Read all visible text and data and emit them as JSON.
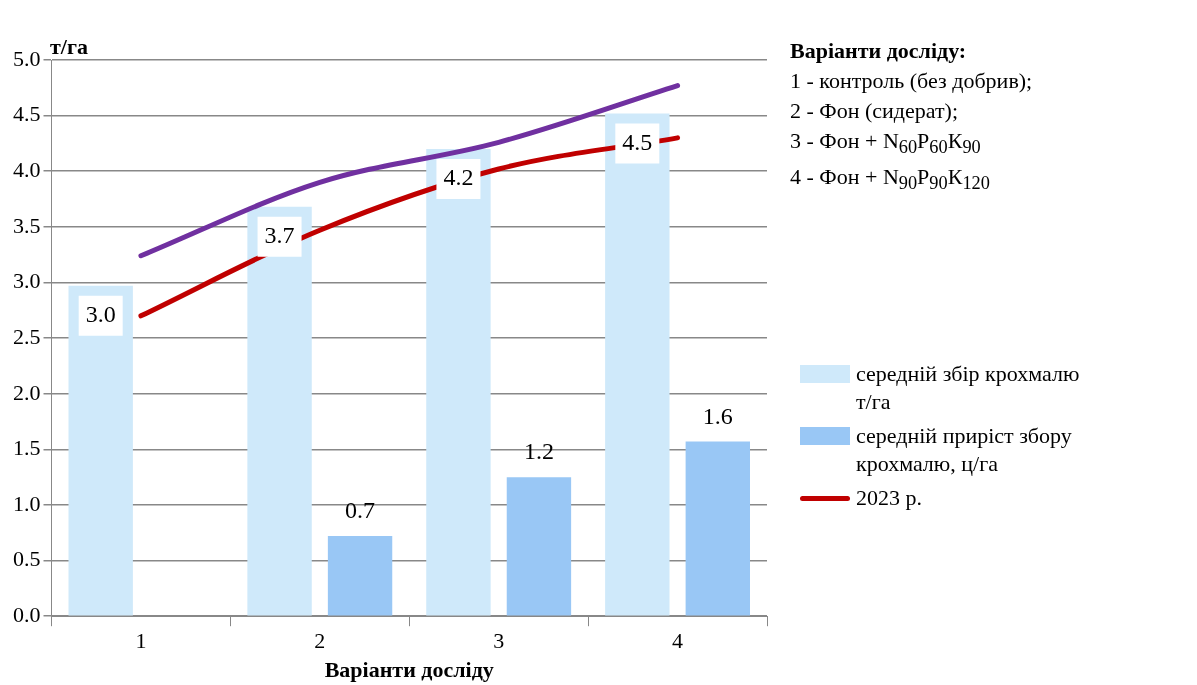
{
  "chart_data": {
    "type": "bar",
    "xlabel": "Варіанти досліду",
    "ylabel": "т/га",
    "categories": [
      "1",
      "2",
      "3",
      "4"
    ],
    "series": [
      {
        "name": "середній збір крохмалю т/га",
        "color": "#cfe9fa",
        "values": [
          2.97,
          3.68,
          4.2,
          4.52
        ],
        "value_labels": [
          "3.0",
          "3.7",
          "4.2",
          "4.5"
        ]
      },
      {
        "name": "середній приріст збору крохмалю, ц/га",
        "color": "#99c7f5",
        "values": [
          null,
          0.72,
          1.25,
          1.57
        ],
        "value_labels": [
          null,
          "0.7",
          "1.2",
          "1.6"
        ]
      },
      {
        "type": "line",
        "color": "#7030a0",
        "values": [
          3.24,
          3.9,
          4.26,
          4.77
        ]
      },
      {
        "type": "line",
        "name": "2023 р.",
        "color": "#c00000",
        "values": [
          2.7,
          3.47,
          4.02,
          4.3
        ]
      }
    ],
    "ylim": [
      0,
      5
    ],
    "yticks": [
      {
        "value": 0,
        "label": "0.0"
      },
      0.5,
      {
        "value": 1,
        "label": "1.0"
      },
      1.5,
      {
        "value": 2,
        "label": "2.0"
      },
      2.5,
      {
        "value": 3,
        "label": "3.0"
      },
      3.5,
      {
        "value": 4,
        "label": "4.0"
      },
      4.5,
      {
        "value": 5,
        "label": "5.0"
      }
    ],
    "grid": "y",
    "legend": "right",
    "marker": "none",
    "annotations": [
      "Варіанти досліду:",
      "1 - контроль  (без добрив);",
      "2 - Фон (сидерат);",
      "3 - Фон + N$_{60}$P$_{60}$К$_{90}$",
      "4 - Фон + N$_{90}$P$_{90}$К$_{120}$"
    ]
  }
}
